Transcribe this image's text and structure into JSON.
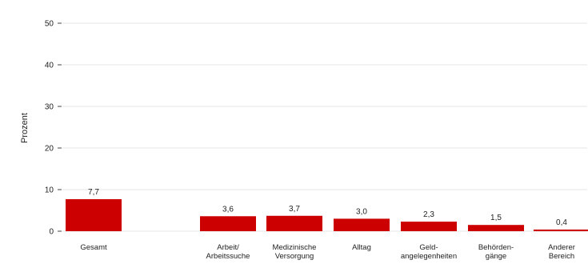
{
  "chart_data": {
    "type": "bar",
    "title": "",
    "xlabel": "",
    "ylabel": "Prozent",
    "ylim": [
      0,
      50
    ],
    "yticks": [
      0,
      10,
      20,
      30,
      40,
      50
    ],
    "grid": true,
    "legend": "none",
    "categories": [
      [
        "Gesamt"
      ],
      [
        "Arbeit/",
        "Arbeitssuche"
      ],
      [
        "Medizinische",
        "Versorgung"
      ],
      [
        "Alltag"
      ],
      [
        "Geld-",
        "angelegenheiten"
      ],
      [
        "Behörden-",
        "gänge"
      ],
      [
        "Anderer",
        "Bereich"
      ]
    ],
    "values": [
      7.7,
      3.6,
      3.7,
      3.0,
      2.3,
      1.5,
      0.4
    ],
    "value_labels": [
      "7,7",
      "3,6",
      "3,7",
      "3,0",
      "2,3",
      "1,5",
      "0,4"
    ],
    "bar_color": "#cc0000",
    "grid_color": "#e6e6e6",
    "axis_color": "#444444"
  }
}
